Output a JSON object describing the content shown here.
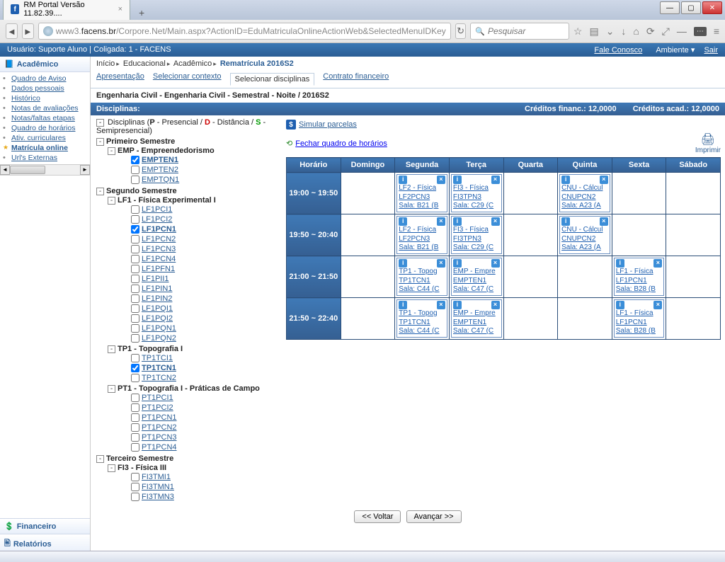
{
  "browser": {
    "tab_title": "RM Portal Versão 11.82.39....",
    "url_gray_prefix": "www3.",
    "url_host": "facens.br",
    "url_path": "/Corpore.Net/Main.aspx?ActionID=EduMatriculaOnlineActionWeb&SelectedMenuIDKey",
    "search_placeholder": "Pesquisar"
  },
  "portal_header": {
    "left": "Usuário: Suporte Aluno  |  Coligada: 1 - FACENS",
    "fale": "Fale Conosco",
    "ambiente": "Ambiente",
    "sair": "Sair"
  },
  "sidebar": {
    "section1": "Acadêmico",
    "items": [
      {
        "label": "Quadro de Aviso"
      },
      {
        "label": "Dados pessoais"
      },
      {
        "label": "Histórico"
      },
      {
        "label": "Notas de avaliações"
      },
      {
        "label": "Notas/faltas etapas"
      },
      {
        "label": "Quadro de horários"
      },
      {
        "label": "Ativ. curriculares"
      },
      {
        "label": "Matrícula online",
        "bold": true
      },
      {
        "label": "Url's Externas"
      }
    ],
    "section2": "Financeiro",
    "section3": "Relatórios"
  },
  "breadcrumb": {
    "segs": [
      "Início",
      "Educacional",
      "Acadêmico"
    ],
    "active": "Rematrícula 2016S2"
  },
  "tabs": {
    "items": [
      "Apresentação",
      "Selecionar contexto",
      "Selecionar disciplinas",
      "Contrato financeiro"
    ],
    "active_index": 2
  },
  "page_title": "Engenharia Civil - Engenharia Civil - Semestral - Noite / 2016S2",
  "bluebar": {
    "left": "Disciplinas:",
    "cred_fin": "Créditos financ.: 12,0000",
    "cred_acad": "Créditos acad.: 12,0000"
  },
  "tree_legend": "Disciplinas (P - Presencial / D - Distância / S - Semipresencial)",
  "tree": [
    {
      "label": "Primeiro Semestre",
      "children": [
        {
          "label": "EMP - Empreendedorismo",
          "children": [
            {
              "label": "EMPTEN1",
              "checked": true,
              "sel": true
            },
            {
              "label": "EMPTEN2"
            },
            {
              "label": "EMPTQN1"
            }
          ]
        }
      ]
    },
    {
      "label": "Segundo Semestre",
      "children": [
        {
          "label": "LF1 - Física Experimental I",
          "children": [
            {
              "label": "LF1PCI1"
            },
            {
              "label": "LF1PCI2"
            },
            {
              "label": "LF1PCN1",
              "checked": true,
              "sel": true
            },
            {
              "label": "LF1PCN2"
            },
            {
              "label": "LF1PCN3"
            },
            {
              "label": "LF1PCN4"
            },
            {
              "label": "LF1PFN1"
            },
            {
              "label": "LF1PII1"
            },
            {
              "label": "LF1PIN1"
            },
            {
              "label": "LF1PIN2"
            },
            {
              "label": "LF1PQI1"
            },
            {
              "label": "LF1PQI2"
            },
            {
              "label": "LF1PQN1"
            },
            {
              "label": "LF1PQN2"
            }
          ]
        },
        {
          "label": "TP1 - Topografia I",
          "children": [
            {
              "label": "TP1TCI1"
            },
            {
              "label": "TP1TCN1",
              "checked": true,
              "sel": true
            },
            {
              "label": "TP1TCN2"
            }
          ]
        },
        {
          "label": "PT1 - Topografia I - Práticas de Campo",
          "children": [
            {
              "label": "PT1PCI1"
            },
            {
              "label": "PT1PCI2"
            },
            {
              "label": "PT1PCN1"
            },
            {
              "label": "PT1PCN2"
            },
            {
              "label": "PT1PCN3"
            },
            {
              "label": "PT1PCN4"
            }
          ]
        }
      ]
    },
    {
      "label": "Terceiro Semestre",
      "children": [
        {
          "label": "FI3 - Física III",
          "children": [
            {
              "label": "FI3TMI1"
            },
            {
              "label": "FI3TMN1"
            },
            {
              "label": "FI3TMN3"
            }
          ]
        }
      ]
    }
  ],
  "sched": {
    "simular": "Simular parcelas",
    "fechar": "Fechar quadro de horários",
    "imprimir": "Imprimir",
    "headers": [
      "Horário",
      "Domingo",
      "Segunda",
      "Terça",
      "Quarta",
      "Quinta",
      "Sexta",
      "Sábado"
    ],
    "rows": [
      {
        "time": "19:00 ~ 19:50",
        "cells": [
          null,
          {
            "l1": "LF2 - Física",
            "l2": "LF2PCN3",
            "l3": "Sala: B21 (B"
          },
          {
            "l1": "FI3 - Física",
            "l2": "FI3TPN3",
            "l3": "Sala: C29 (C"
          },
          null,
          {
            "l1": "CNU - Cálcul",
            "l2": "CNUPCN2",
            "l3": "Sala: A23 (A"
          },
          null,
          null
        ]
      },
      {
        "time": "19:50 ~ 20:40",
        "cells": [
          null,
          {
            "l1": "LF2 - Física",
            "l2": "LF2PCN3",
            "l3": "Sala: B21 (B"
          },
          {
            "l1": "FI3 - Física",
            "l2": "FI3TPN3",
            "l3": "Sala: C29 (C"
          },
          null,
          {
            "l1": "CNU - Cálcul",
            "l2": "CNUPCN2",
            "l3": "Sala: A23 (A"
          },
          null,
          null
        ]
      },
      {
        "time": "21:00 ~ 21:50",
        "cells": [
          null,
          {
            "l1": "TP1 - Topog",
            "l2": "TP1TCN1",
            "l3": "Sala: C44 (C"
          },
          {
            "l1": "EMP - Empre",
            "l2": "EMPTEN1",
            "l3": "Sala: C47 (C"
          },
          null,
          null,
          {
            "l1": "LF1 - Física",
            "l2": "LF1PCN1",
            "l3": "Sala: B28 (B"
          },
          null
        ]
      },
      {
        "time": "21:50 ~ 22:40",
        "cells": [
          null,
          {
            "l1": "TP1 - Topog",
            "l2": "TP1TCN1",
            "l3": "Sala: C44 (C"
          },
          {
            "l1": "EMP - Empre",
            "l2": "EMPTEN1",
            "l3": "Sala: C47 (C"
          },
          null,
          null,
          {
            "l1": "LF1 - Física",
            "l2": "LF1PCN1",
            "l3": "Sala: B28 (B"
          },
          null
        ]
      }
    ]
  },
  "buttons": {
    "voltar": "<< Voltar",
    "avancar": "Avançar >>"
  }
}
